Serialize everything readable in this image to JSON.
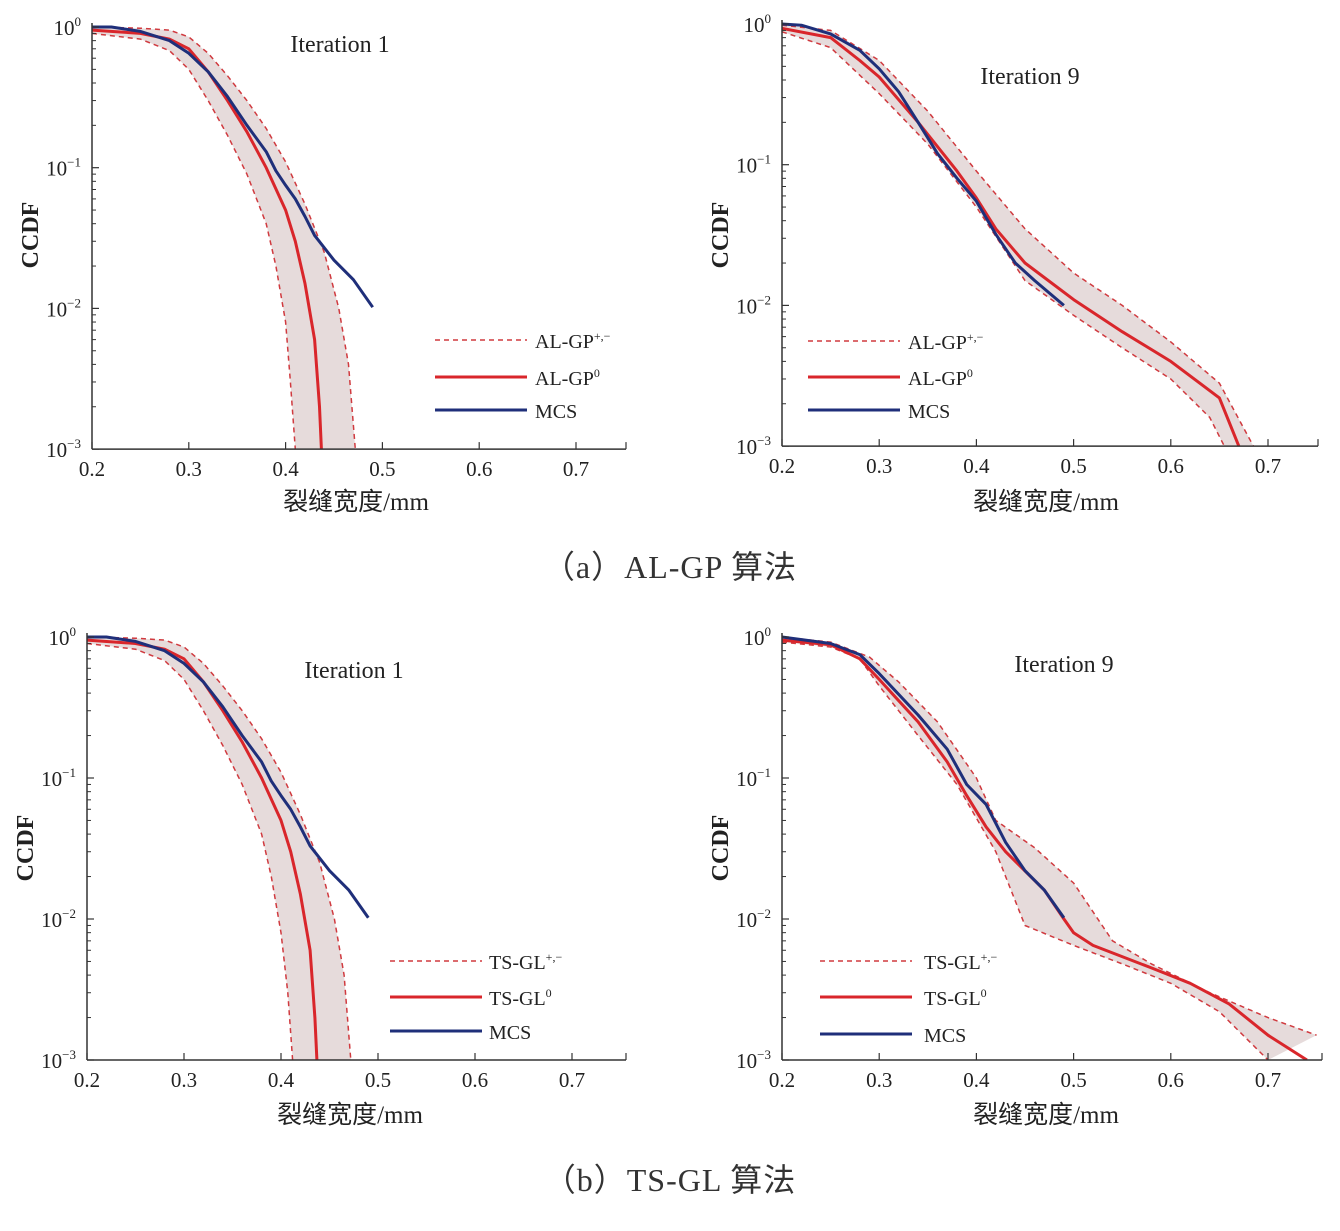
{
  "captions": [
    "（a）AL-GP 算法",
    "（b）TS-GL 算法"
  ],
  "colors": {
    "mean": "#d9262b",
    "bound": "#d03a3f",
    "mcs": "#1f2f7a",
    "band": "#e2d5d5",
    "axis": "#333333"
  },
  "chart_data": [
    {
      "type": "line",
      "title": "Iteration 1",
      "xlabel": "裂缝宽度/mm",
      "ylabel": "CCDF",
      "xlim": [
        0.2,
        0.75
      ],
      "ylim": [
        0.001,
        1
      ],
      "yscale": "log",
      "xticks": [
        "0.2",
        "0.3",
        "0.4",
        "0.5",
        "0.6",
        "0.7"
      ],
      "yticks": [
        {
          "base": "10",
          "exp": "0"
        },
        {
          "base": "10",
          "exp": "−1"
        },
        {
          "base": "10",
          "exp": "−2"
        },
        {
          "base": "10",
          "exp": "−3"
        }
      ],
      "legend": [
        {
          "base": "AL-GP",
          "sup": "+,−"
        },
        {
          "base": "AL-GP",
          "sup": "0"
        },
        {
          "base": "MCS",
          "sup": ""
        }
      ],
      "series": [
        {
          "name": "AL-GP+ (upper)",
          "style": "bound",
          "x": [
            0.2,
            0.25,
            0.28,
            0.3,
            0.32,
            0.34,
            0.36,
            0.38,
            0.4,
            0.42,
            0.44,
            0.455,
            0.465,
            0.472
          ],
          "y": [
            1,
            0.98,
            0.95,
            0.85,
            0.65,
            0.45,
            0.3,
            0.19,
            0.11,
            0.055,
            0.025,
            0.01,
            0.004,
            0.001
          ]
        },
        {
          "name": "AL-GP- (lower)",
          "style": "bound",
          "x": [
            0.2,
            0.25,
            0.28,
            0.3,
            0.32,
            0.34,
            0.36,
            0.38,
            0.39,
            0.4,
            0.405,
            0.41
          ],
          "y": [
            0.9,
            0.82,
            0.68,
            0.5,
            0.3,
            0.17,
            0.09,
            0.04,
            0.02,
            0.008,
            0.003,
            0.001
          ]
        },
        {
          "name": "AL-GP0",
          "style": "mean",
          "x": [
            0.2,
            0.25,
            0.28,
            0.3,
            0.32,
            0.34,
            0.36,
            0.38,
            0.4,
            0.41,
            0.42,
            0.43,
            0.435,
            0.437
          ],
          "y": [
            0.95,
            0.9,
            0.82,
            0.7,
            0.48,
            0.3,
            0.18,
            0.1,
            0.05,
            0.03,
            0.015,
            0.006,
            0.002,
            0.001
          ]
        },
        {
          "name": "MCS",
          "style": "mcs",
          "x": [
            0.2,
            0.22,
            0.25,
            0.28,
            0.3,
            0.32,
            0.34,
            0.36,
            0.38,
            0.39,
            0.4,
            0.41,
            0.42,
            0.43,
            0.45,
            0.47,
            0.49
          ],
          "y": [
            1,
            1,
            0.93,
            0.8,
            0.65,
            0.48,
            0.32,
            0.2,
            0.13,
            0.095,
            0.075,
            0.06,
            0.045,
            0.033,
            0.022,
            0.016,
            0.0102
          ]
        }
      ]
    },
    {
      "type": "line",
      "title": "Iteration 9",
      "xlabel": "裂缝宽度/mm",
      "ylabel": "CCDF",
      "xlim": [
        0.2,
        0.75
      ],
      "ylim": [
        0.001,
        1
      ],
      "yscale": "log",
      "xticks": [
        "0.2",
        "0.3",
        "0.4",
        "0.5",
        "0.6",
        "0.7"
      ],
      "yticks": [
        {
          "base": "10",
          "exp": "0"
        },
        {
          "base": "10",
          "exp": "−1"
        },
        {
          "base": "10",
          "exp": "−2"
        },
        {
          "base": "10",
          "exp": "−3"
        }
      ],
      "legend": [
        {
          "base": "AL-GP",
          "sup": "+,−"
        },
        {
          "base": "AL-GP",
          "sup": "0"
        },
        {
          "base": "MCS",
          "sup": ""
        }
      ],
      "series": [
        {
          "name": "AL-GP+ (upper)",
          "style": "bound",
          "x": [
            0.2,
            0.25,
            0.3,
            0.35,
            0.4,
            0.45,
            0.5,
            0.55,
            0.6,
            0.65,
            0.685
          ],
          "y": [
            0.98,
            0.9,
            0.55,
            0.24,
            0.09,
            0.035,
            0.017,
            0.01,
            0.0055,
            0.0028,
            0.001
          ]
        },
        {
          "name": "AL-GP- (lower)",
          "style": "bound",
          "x": [
            0.2,
            0.25,
            0.3,
            0.35,
            0.4,
            0.45,
            0.5,
            0.55,
            0.6,
            0.64,
            0.655
          ],
          "y": [
            0.88,
            0.68,
            0.32,
            0.14,
            0.05,
            0.015,
            0.0085,
            0.005,
            0.003,
            0.0016,
            0.001
          ]
        },
        {
          "name": "AL-GP0",
          "style": "mean",
          "x": [
            0.2,
            0.25,
            0.28,
            0.3,
            0.34,
            0.38,
            0.4,
            0.42,
            0.45,
            0.5,
            0.55,
            0.6,
            0.65,
            0.67
          ],
          "y": [
            0.93,
            0.8,
            0.55,
            0.42,
            0.2,
            0.09,
            0.058,
            0.035,
            0.02,
            0.011,
            0.0065,
            0.004,
            0.0022,
            0.001
          ]
        },
        {
          "name": "MCS",
          "style": "mcs",
          "x": [
            0.2,
            0.22,
            0.25,
            0.28,
            0.3,
            0.32,
            0.34,
            0.36,
            0.38,
            0.4,
            0.42,
            0.44,
            0.46,
            0.49
          ],
          "y": [
            1,
            0.98,
            0.85,
            0.65,
            0.48,
            0.33,
            0.2,
            0.12,
            0.08,
            0.055,
            0.032,
            0.02,
            0.015,
            0.01
          ]
        }
      ]
    },
    {
      "type": "line",
      "title": "Iteration 1",
      "xlabel": "裂缝宽度/mm",
      "ylabel": "CCDF",
      "xlim": [
        0.2,
        0.75
      ],
      "ylim": [
        0.001,
        1
      ],
      "yscale": "log",
      "xticks": [
        "0.2",
        "0.3",
        "0.4",
        "0.5",
        "0.6",
        "0.7"
      ],
      "yticks": [
        {
          "base": "10",
          "exp": "0"
        },
        {
          "base": "10",
          "exp": "−1"
        },
        {
          "base": "10",
          "exp": "−2"
        },
        {
          "base": "10",
          "exp": "−3"
        }
      ],
      "legend": [
        {
          "base": "TS-GL",
          "sup": "+,−"
        },
        {
          "base": "TS-GL",
          "sup": "0"
        },
        {
          "base": "MCS",
          "sup": ""
        }
      ],
      "series": [
        {
          "name": "TS-GL+ (upper)",
          "style": "bound",
          "x": [
            0.2,
            0.25,
            0.28,
            0.3,
            0.32,
            0.34,
            0.36,
            0.38,
            0.4,
            0.42,
            0.44,
            0.455,
            0.465,
            0.472
          ],
          "y": [
            1,
            0.98,
            0.95,
            0.85,
            0.65,
            0.45,
            0.3,
            0.19,
            0.11,
            0.055,
            0.025,
            0.01,
            0.004,
            0.001
          ]
        },
        {
          "name": "TS-GL- (lower)",
          "style": "bound",
          "x": [
            0.2,
            0.25,
            0.28,
            0.3,
            0.32,
            0.34,
            0.36,
            0.38,
            0.39,
            0.4,
            0.407,
            0.412
          ],
          "y": [
            0.9,
            0.82,
            0.68,
            0.5,
            0.3,
            0.17,
            0.09,
            0.04,
            0.02,
            0.008,
            0.003,
            0.001
          ]
        },
        {
          "name": "TS-GL0",
          "style": "mean",
          "x": [
            0.2,
            0.25,
            0.28,
            0.3,
            0.32,
            0.34,
            0.36,
            0.38,
            0.4,
            0.41,
            0.42,
            0.43,
            0.435,
            0.437
          ],
          "y": [
            0.95,
            0.9,
            0.82,
            0.7,
            0.48,
            0.3,
            0.18,
            0.1,
            0.05,
            0.03,
            0.015,
            0.006,
            0.002,
            0.001
          ]
        },
        {
          "name": "MCS",
          "style": "mcs",
          "x": [
            0.2,
            0.22,
            0.25,
            0.28,
            0.3,
            0.32,
            0.34,
            0.36,
            0.38,
            0.39,
            0.4,
            0.41,
            0.42,
            0.43,
            0.45,
            0.47,
            0.49
          ],
          "y": [
            1,
            1,
            0.93,
            0.8,
            0.65,
            0.48,
            0.32,
            0.2,
            0.13,
            0.095,
            0.075,
            0.06,
            0.045,
            0.033,
            0.022,
            0.016,
            0.0102
          ]
        }
      ]
    },
    {
      "type": "line",
      "title": "Iteration 9",
      "xlabel": "裂缝宽度/mm",
      "ylabel": "CCDF",
      "xlim": [
        0.2,
        0.75
      ],
      "ylim": [
        0.001,
        1
      ],
      "yscale": "log",
      "xticks": [
        "0.2",
        "0.3",
        "0.4",
        "0.5",
        "0.6",
        "0.7"
      ],
      "yticks": [
        {
          "base": "10",
          "exp": "0"
        },
        {
          "base": "10",
          "exp": "−1"
        },
        {
          "base": "10",
          "exp": "−2"
        },
        {
          "base": "10",
          "exp": "−3"
        }
      ],
      "legend": [
        {
          "base": "TS-GL",
          "sup": "+,−"
        },
        {
          "base": "TS-GL",
          "sup": "0"
        },
        {
          "base": "MCS",
          "sup": ""
        }
      ],
      "series": [
        {
          "name": "TS-GL+ (upper)",
          "style": "bound",
          "x": [
            0.2,
            0.25,
            0.29,
            0.32,
            0.36,
            0.4,
            0.42,
            0.46,
            0.5,
            0.54,
            0.58,
            0.64,
            0.7,
            0.75
          ],
          "y": [
            1,
            0.92,
            0.72,
            0.48,
            0.25,
            0.1,
            0.05,
            0.032,
            0.018,
            0.007,
            0.0048,
            0.003,
            0.002,
            0.0015
          ]
        },
        {
          "name": "TS-GL- (lower)",
          "style": "bound",
          "x": [
            0.2,
            0.25,
            0.28,
            0.3,
            0.34,
            0.38,
            0.42,
            0.45,
            0.5,
            0.55,
            0.6,
            0.65,
            0.7
          ],
          "y": [
            0.92,
            0.85,
            0.7,
            0.45,
            0.2,
            0.09,
            0.03,
            0.009,
            0.0065,
            0.0048,
            0.0035,
            0.0022,
            0.001
          ]
        },
        {
          "name": "TS-GL0",
          "style": "mean",
          "x": [
            0.2,
            0.25,
            0.28,
            0.3,
            0.34,
            0.37,
            0.39,
            0.41,
            0.43,
            0.47,
            0.49,
            0.5,
            0.52,
            0.58,
            0.62,
            0.66,
            0.7,
            0.74
          ],
          "y": [
            0.95,
            0.88,
            0.7,
            0.5,
            0.25,
            0.13,
            0.075,
            0.045,
            0.03,
            0.016,
            0.01,
            0.008,
            0.0065,
            0.0045,
            0.0035,
            0.0025,
            0.0015,
            0.001
          ]
        },
        {
          "name": "MCS",
          "style": "mcs",
          "x": [
            0.2,
            0.25,
            0.28,
            0.3,
            0.34,
            0.37,
            0.39,
            0.41,
            0.43,
            0.45,
            0.47,
            0.49
          ],
          "y": [
            1,
            0.9,
            0.75,
            0.55,
            0.28,
            0.16,
            0.09,
            0.065,
            0.035,
            0.022,
            0.016,
            0.0102
          ]
        }
      ]
    }
  ]
}
